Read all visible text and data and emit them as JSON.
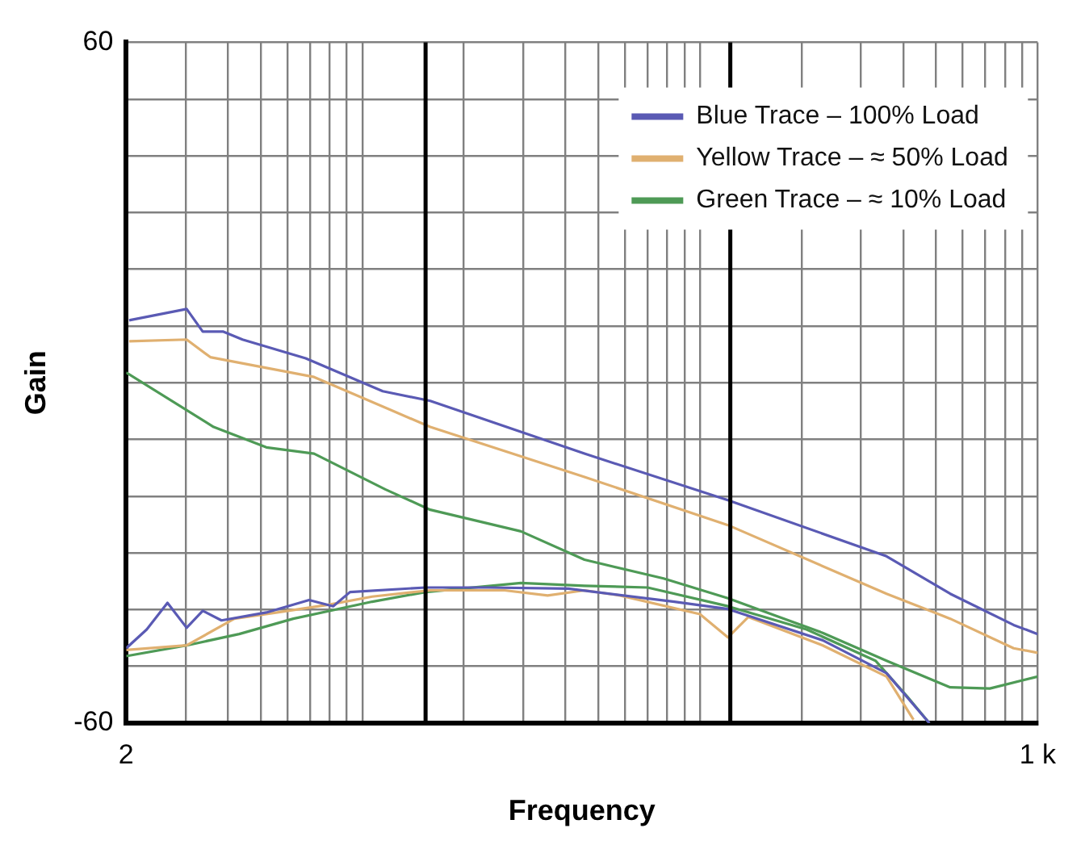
{
  "chart_data": {
    "type": "line",
    "xlabel": "Frequency",
    "ylabel": "Gain",
    "log": "x",
    "grid": true,
    "legend": "top right",
    "marker": "none",
    "line_style": "solid",
    "xlim": [
      2,
      1000
    ],
    "xticks": [
      2,
      {
        "value": 3,
        "label": null
      },
      {
        "value": 4,
        "label": null
      },
      {
        "value": 5,
        "label": null
      },
      {
        "value": 6,
        "label": null
      },
      {
        "value": 7,
        "label": null
      },
      {
        "value": 8,
        "label": null
      },
      {
        "value": 9,
        "label": null
      },
      {
        "value": 10,
        "label": null
      },
      {
        "value": 20,
        "label": null
      },
      {
        "value": 30,
        "label": null
      },
      {
        "value": 40,
        "label": null
      },
      {
        "value": 50,
        "label": null
      },
      {
        "value": 60,
        "label": null
      },
      {
        "value": 70,
        "label": null
      },
      {
        "value": 80,
        "label": null
      },
      {
        "value": 90,
        "label": null
      },
      {
        "value": 100,
        "label": null
      },
      {
        "value": 200,
        "label": null
      },
      {
        "value": 300,
        "label": null
      },
      {
        "value": 400,
        "label": null
      },
      {
        "value": 500,
        "label": null
      },
      {
        "value": 600,
        "label": null
      },
      {
        "value": 700,
        "label": null
      },
      {
        "value": 800,
        "label": null
      },
      {
        "value": 900,
        "label": null
      },
      {
        "value": 1000,
        "label": "1 k"
      }
    ],
    "ylim": [
      -60,
      60
    ],
    "yticks": [
      -60,
      {
        "value": -50,
        "label": null
      },
      {
        "value": -40,
        "label": null
      },
      {
        "value": -30,
        "label": null
      },
      {
        "value": -20,
        "label": null
      },
      {
        "value": -10,
        "label": null
      },
      {
        "value": 0,
        "label": null
      },
      {
        "value": 10,
        "label": null
      },
      {
        "value": 20,
        "label": null
      },
      {
        "value": 30,
        "label": null
      },
      {
        "value": 40,
        "label": null
      },
      {
        "value": 50,
        "label": null
      },
      60
    ],
    "ref_lines": [
      {
        "axis": "x",
        "value": 15.4,
        "color": "#000000"
      },
      {
        "axis": "x",
        "value": 123,
        "color": "#000000"
      }
    ],
    "series": [
      {
        "name": "Blue Trace – 100% Load",
        "color": "#5a5ab4",
        "x": [
          2.04,
          3.02,
          3.37,
          3.88,
          4.42,
          6.8,
          11.5,
          15.9,
          45.5,
          121,
          357,
          551,
          849,
          1000
        ],
        "values": [
          11,
          13,
          9,
          9,
          7.6,
          4.3,
          -1.5,
          -3.2,
          -12.5,
          -20.7,
          -30.6,
          -37.2,
          -42.7,
          -44.3
        ]
      },
      {
        "name": "Yellow Trace – ≈ 50% Load",
        "color": "#e0b070",
        "x": [
          2.04,
          3.02,
          3.55,
          7.2,
          15.9,
          45.5,
          121,
          357,
          551,
          849,
          1000
        ],
        "values": [
          7.3,
          7.6,
          4.5,
          1,
          -7.8,
          -16.6,
          -25.1,
          -37.2,
          -41.6,
          -46.8,
          -47.6
        ]
      },
      {
        "name": "Green Trace – ≈ 10% Load",
        "color": "#4e9a56",
        "x": [
          2,
          3.63,
          5.2,
          7.2,
          11.7,
          15.9,
          29.5,
          45.5,
          78,
          121,
          231,
          357,
          551,
          722,
          1000
        ],
        "values": [
          1.8,
          -7.8,
          -11.4,
          -12.5,
          -18.8,
          -22.4,
          -26.2,
          -31.2,
          -34.5,
          -38,
          -44.1,
          -49,
          -53.7,
          -53.9,
          -51.8
        ]
      },
      {
        "color": "#5a5ab4",
        "x": [
          2,
          2.3,
          2.65,
          3.02,
          3.37,
          3.83,
          5.2,
          6.96,
          8.2,
          9.2,
          15.4,
          23.7,
          40.8,
          84,
          121,
          231,
          357,
          478
        ],
        "values": [
          -46.8,
          -43.5,
          -38.8,
          -43.2,
          -40.2,
          -41.9,
          -40.5,
          -38.3,
          -39.4,
          -36.9,
          -36.1,
          -36.1,
          -36.3,
          -38.6,
          -39.9,
          -45.4,
          -51.2,
          -60
        ]
      },
      {
        "color": "#e0b070",
        "x": [
          2,
          3.02,
          4.18,
          5.6,
          8,
          10.7,
          15.9,
          26.4,
          35.4,
          45.5,
          58,
          100,
          121,
          139,
          231,
          357,
          429
        ],
        "values": [
          -47.1,
          -46.3,
          -41.6,
          -40.5,
          -39.1,
          -37.7,
          -36.6,
          -36.6,
          -37.5,
          -36.6,
          -37.5,
          -40.8,
          -44.9,
          -41.3,
          -46.3,
          -51.8,
          -59.4
        ]
      },
      {
        "color": "#4e9a56",
        "x": [
          2,
          3.02,
          4.32,
          6.25,
          10.7,
          15.4,
          29.5,
          45.5,
          70,
          121,
          207,
          331,
          411,
          478
        ],
        "values": [
          -48.2,
          -46.3,
          -44.3,
          -41.6,
          -38.6,
          -36.9,
          -35.3,
          -35.8,
          -36.1,
          -39.4,
          -43.5,
          -49,
          -55.3,
          -60
        ]
      }
    ]
  }
}
